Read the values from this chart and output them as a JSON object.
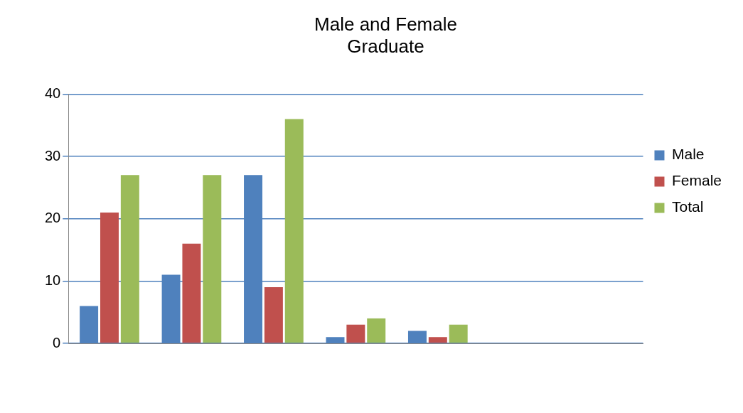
{
  "chart_data": {
    "type": "bar",
    "title": "Male and Female\nGraduate",
    "categories": [
      null,
      null,
      null,
      null,
      null,
      null,
      null
    ],
    "series": [
      {
        "name": "Male",
        "color": "#4f81bd",
        "values": [
          6,
          11,
          27,
          1,
          2,
          null,
          0
        ]
      },
      {
        "name": "Female",
        "color": "#c0504d",
        "values": [
          21,
          16,
          9,
          3,
          1,
          null,
          null
        ]
      },
      {
        "name": "Total",
        "color": "#9bbb59",
        "values": [
          27,
          27,
          36,
          4,
          3,
          null,
          null
        ]
      }
    ],
    "ylim": [
      0,
      40
    ],
    "yticks": [
      0,
      10,
      20,
      30,
      40
    ],
    "grid": "y",
    "legend": "right"
  }
}
